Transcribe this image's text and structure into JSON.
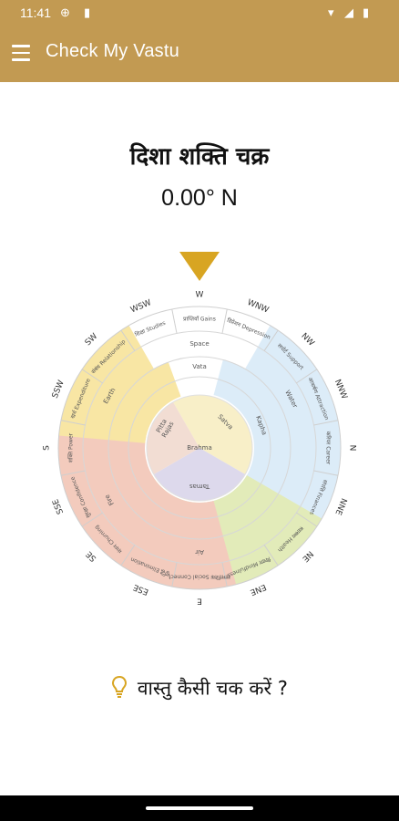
{
  "status_bar": {
    "time": "11:41"
  },
  "app_bar": {
    "title": "Check My Vastu",
    "menu_icon": "hamburger-menu-icon"
  },
  "heading": "दिशा शक्ति चक्र",
  "reading": "0.00° N",
  "chakra": {
    "directions": [
      "W",
      "WNW",
      "NW",
      "NNW",
      "N",
      "NNE",
      "NE",
      "ENE",
      "E",
      "ESE",
      "SE",
      "SSE",
      "S",
      "SSW",
      "SW",
      "WSW"
    ],
    "zone_labels": [
      "प्राप्तियाँ Gains",
      "डिप्रेशन Depression",
      "सपोर्ट Support",
      "आकर्षण Attraction",
      "करियर Career",
      "संपत्ति Finances",
      "स्वास्थ्य Health",
      "विचार Mindfulness",
      "सामाजिक Social Connect",
      "शुद्धि Elimination",
      "मंथन Churning",
      "सुरक्षा Confidence",
      "शक्ति Power",
      "खर्च Expenditure",
      "संबंध Relationship",
      "शिक्षा Studies"
    ],
    "elements": [
      "Space",
      "Vata",
      "Water",
      "Kapha",
      "Air",
      "Pitta",
      "Fire",
      "Earth"
    ],
    "inner_labels": [
      "Satva",
      "Rajas",
      "Tamas",
      "Brahma"
    ],
    "colors": {
      "water": "#dcecf8",
      "air": "#e2ebb9",
      "fire": "#f3cbbd",
      "earth": "#f8e6a4",
      "space": "#ffffff",
      "vata": "#dedede",
      "satva": "#f8efc8",
      "rajas": "#f2ddd3",
      "tamas": "#ddd9ec",
      "brahma": "#ffffff"
    }
  },
  "tip": {
    "text": "वास्तु कैसी चक करें ?"
  }
}
